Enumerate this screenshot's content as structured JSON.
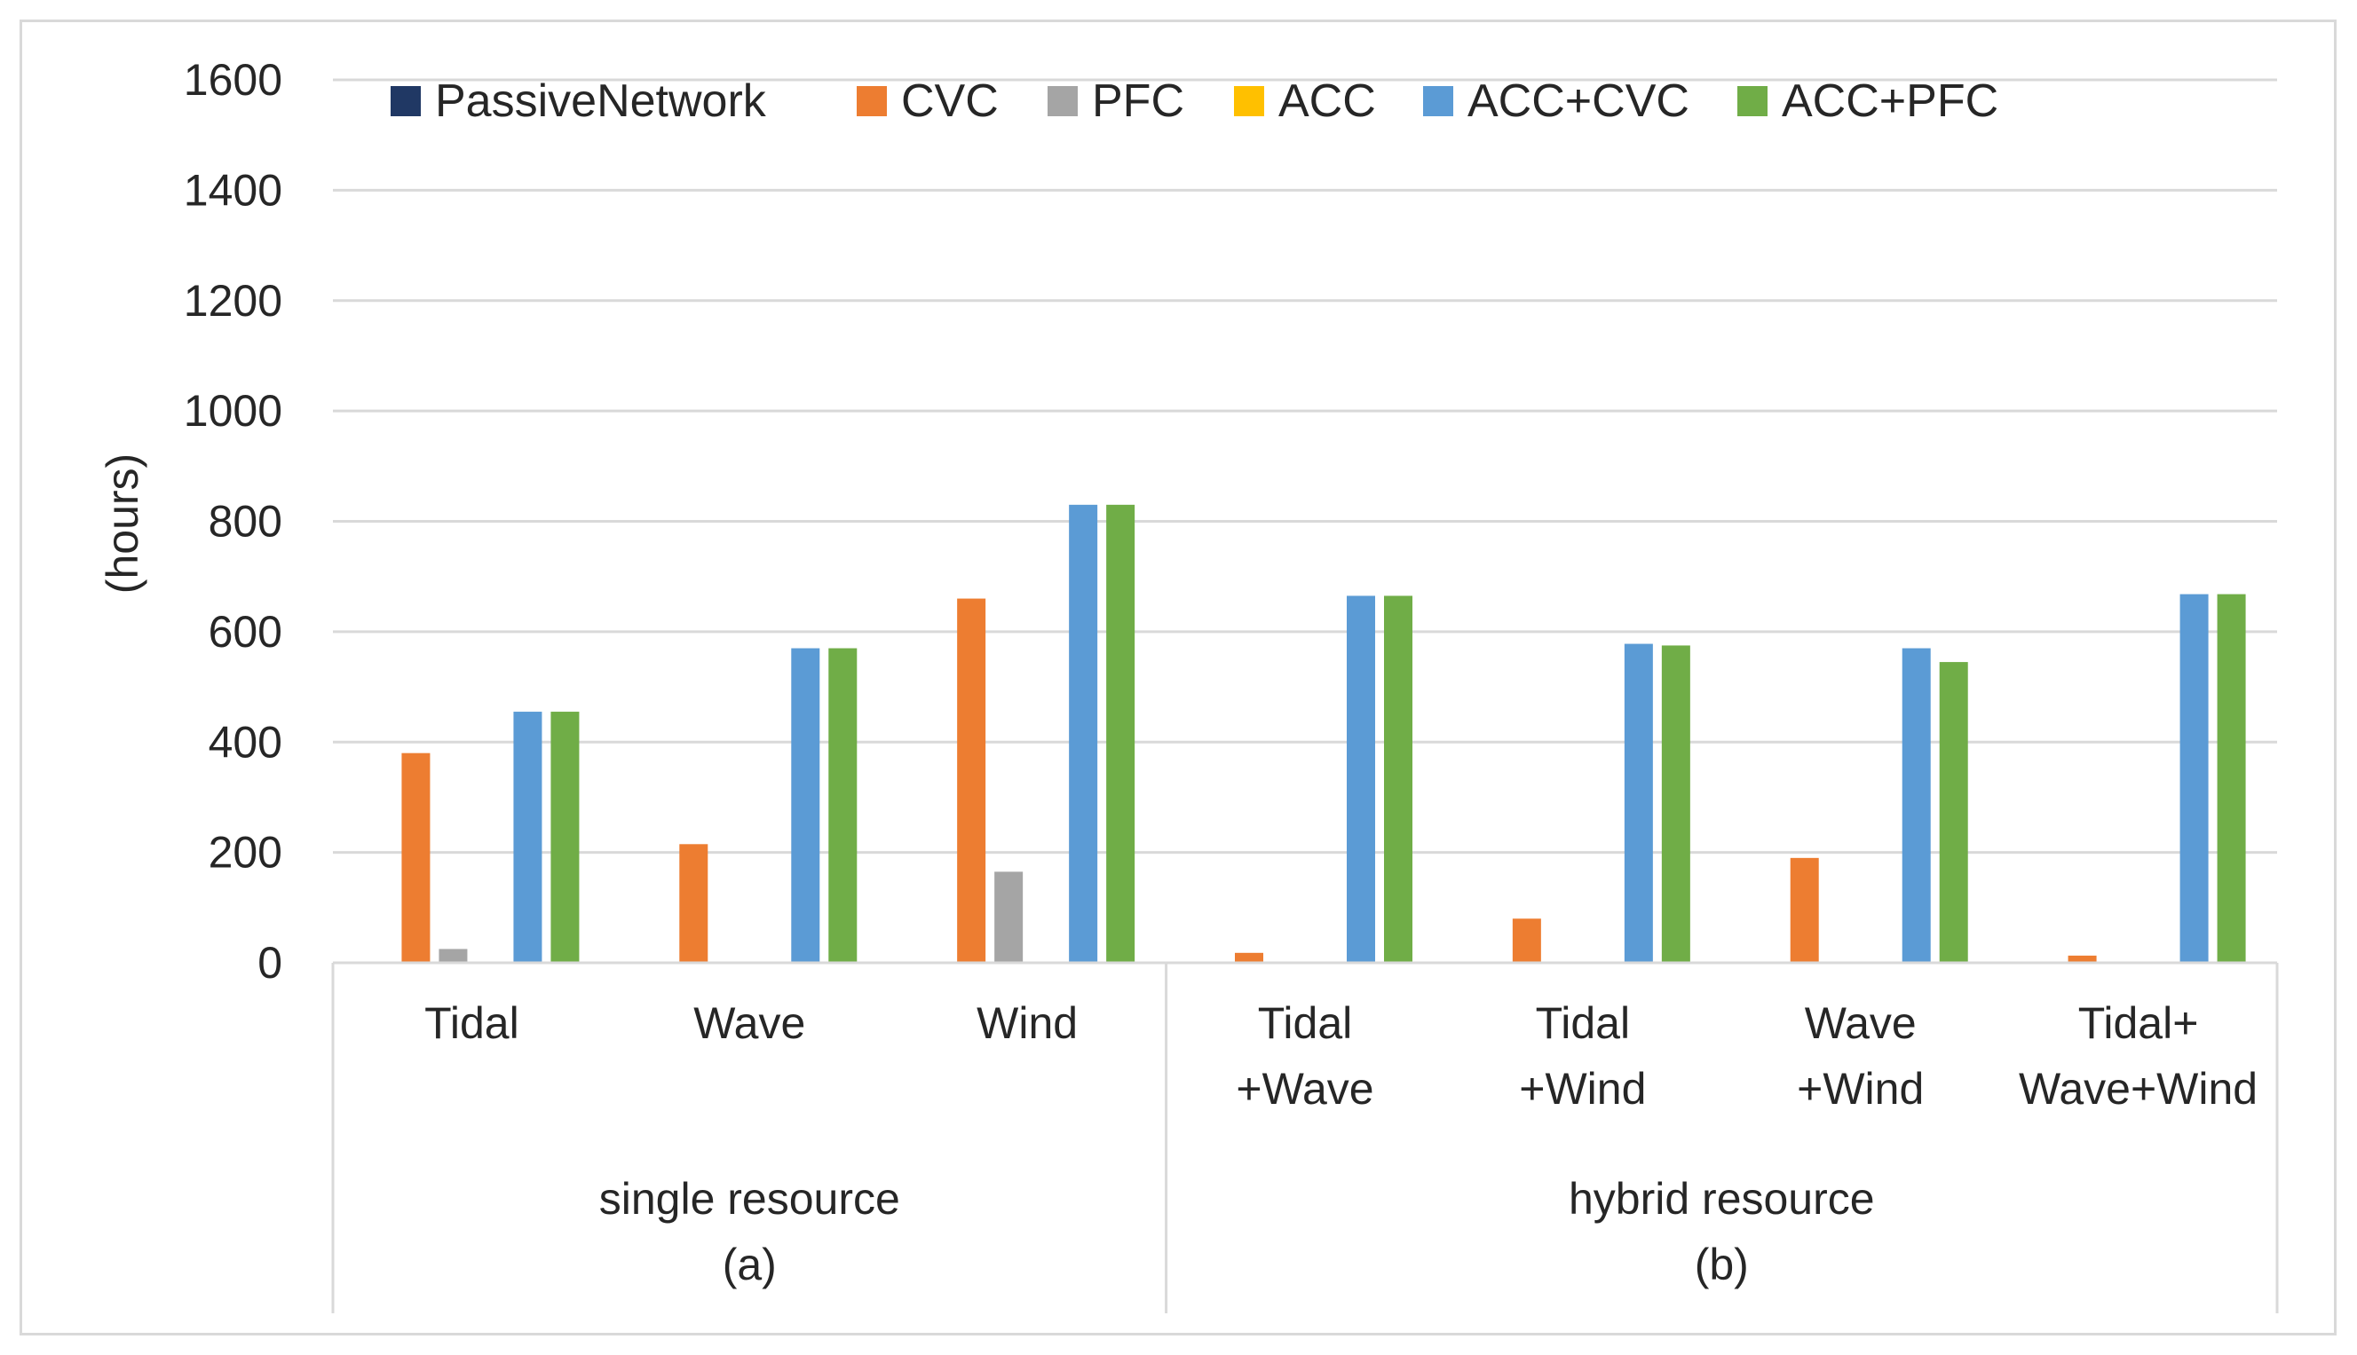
{
  "chart_data": {
    "type": "bar",
    "title": "",
    "ylabel": "(hours)",
    "xlabel": "",
    "ylim": [
      0,
      1600
    ],
    "yticks": [
      "0",
      "200",
      "400",
      "600",
      "800",
      "1000",
      "1200",
      "1400",
      "1600"
    ],
    "legend_position": "top",
    "grid": true,
    "categories": [
      [
        "Tidal"
      ],
      [
        "Wave"
      ],
      [
        "Wind"
      ],
      [
        "Tidal",
        "+Wave"
      ],
      [
        "Tidal",
        "+Wind"
      ],
      [
        "Wave",
        "+Wind"
      ],
      [
        "Tidal+",
        "Wave+Wind"
      ]
    ],
    "groups": [
      {
        "lines": [
          "single resource",
          "(a)"
        ],
        "categories": [
          0,
          1,
          2
        ]
      },
      {
        "lines": [
          "hybrid resource",
          "(b)"
        ],
        "categories": [
          3,
          4,
          5,
          6
        ]
      }
    ],
    "series": [
      {
        "name": "PassiveNetwork",
        "color": "#203864",
        "values": [
          0,
          0,
          0,
          0,
          0,
          0,
          0
        ]
      },
      {
        "name": "CVC",
        "color": "#ED7D31",
        "values": [
          380,
          215,
          660,
          18,
          80,
          190,
          13
        ]
      },
      {
        "name": "PFC",
        "color": "#A5A5A5",
        "values": [
          25,
          0,
          165,
          0,
          0,
          0,
          0
        ]
      },
      {
        "name": "ACC",
        "color": "#FFC000",
        "values": [
          0,
          0,
          0,
          0,
          0,
          0,
          0
        ]
      },
      {
        "name": "ACC+CVC",
        "color": "#5B9BD5",
        "values": [
          455,
          570,
          830,
          665,
          578,
          570,
          668
        ]
      },
      {
        "name": "ACC+PFC",
        "color": "#70AD47",
        "values": [
          455,
          570,
          830,
          665,
          575,
          545,
          668
        ]
      }
    ]
  }
}
